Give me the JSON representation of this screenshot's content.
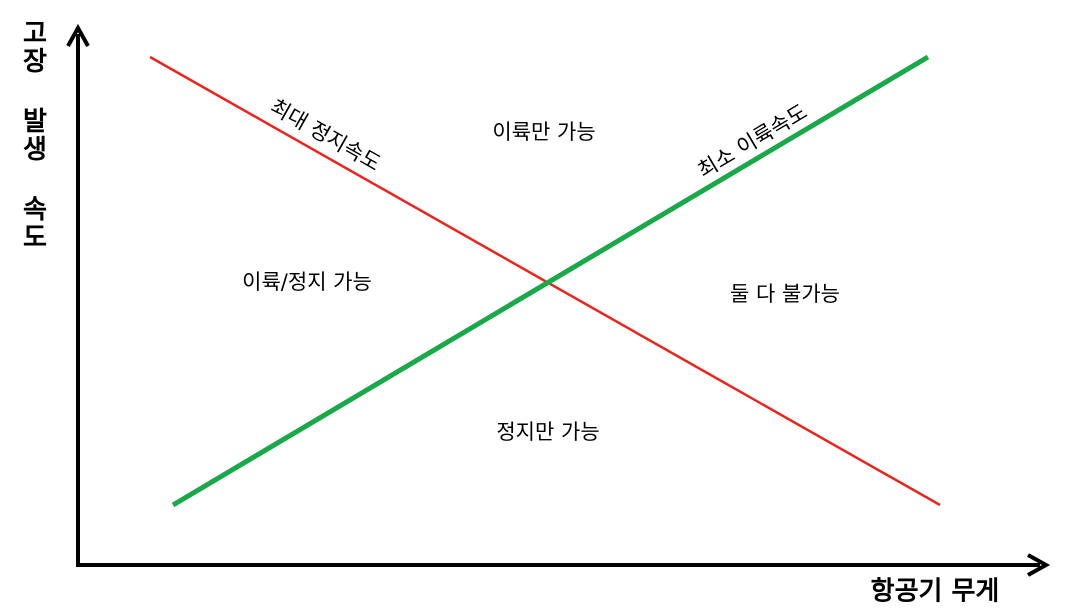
{
  "axes": {
    "y_label": "고장 발생 속도",
    "x_label": "항공기 무게"
  },
  "lines": [
    {
      "label": "최대 정지속도",
      "color": "#e8251f"
    },
    {
      "label": "최소 이륙속도",
      "color": "#1aa84a"
    }
  ],
  "regions": [
    "이륙만 가능",
    "이륙/정지 가능",
    "둘 다 불가능",
    "정지만 가능"
  ]
}
